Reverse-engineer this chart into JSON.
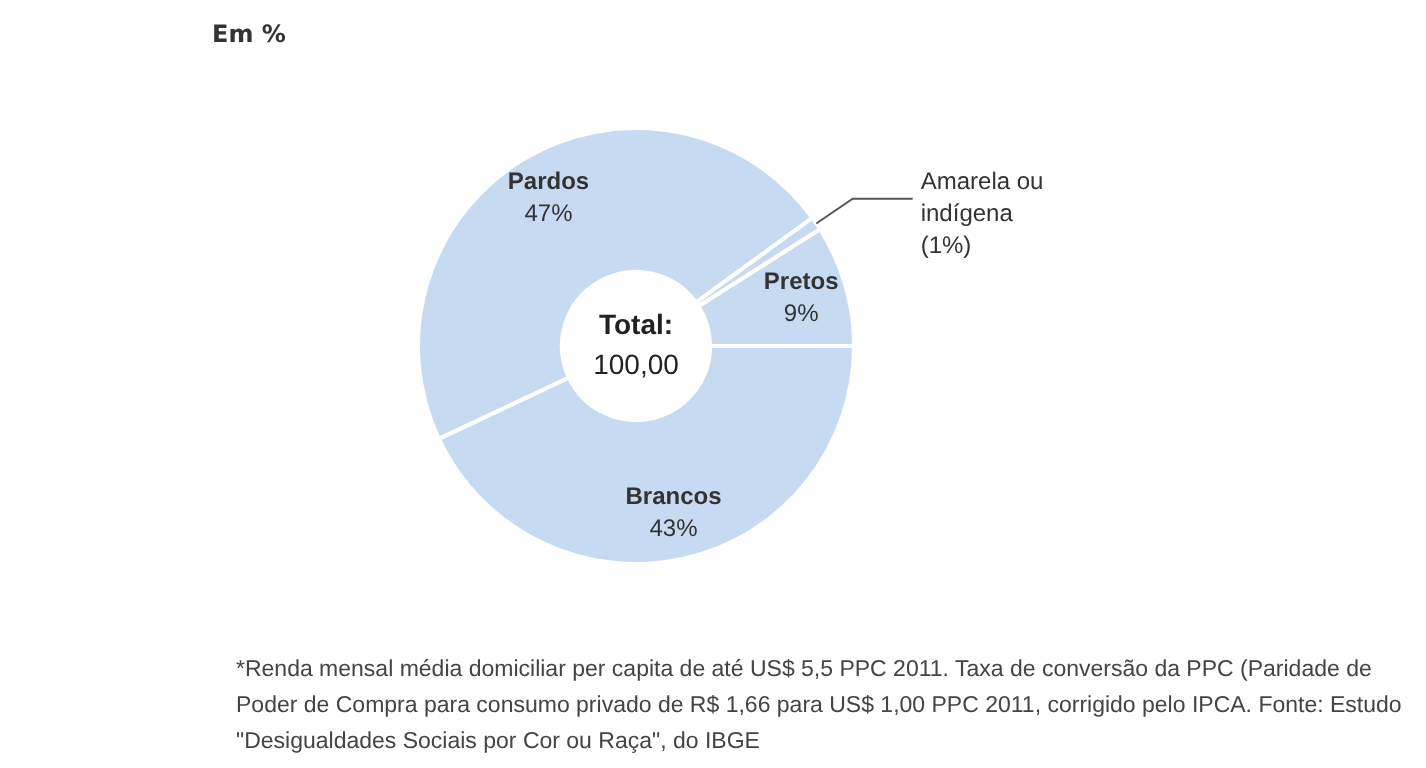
{
  "chart_data": {
    "type": "donut",
    "title": "Em %",
    "categories": [
      "Brancos",
      "Pardos",
      "Amarela ou indígena",
      "Pretos"
    ],
    "values": [
      43,
      47,
      1,
      9
    ],
    "value_labels": [
      "43%",
      "47%",
      "(1%)",
      "9%"
    ],
    "colors": [
      "#c6daf2",
      "#c6daf2",
      "#c6daf2",
      "#c6daf2"
    ],
    "legend": false,
    "annotations": [
      "Total:",
      "100,00",
      "*Renda mensal média domiciliar per capita de até US$ 5,5 PPC 2011. Taxa de conversão da PPC (Paridade de Poder de Compra para consumo privado de R$ 1,66 para US$ 1,00 PPC 2011, corrigido pelo IPCA. Fonte: Estudo \"Desigualdades Sociais por Cor ou Raça\", do IBGE"
    ]
  }
}
